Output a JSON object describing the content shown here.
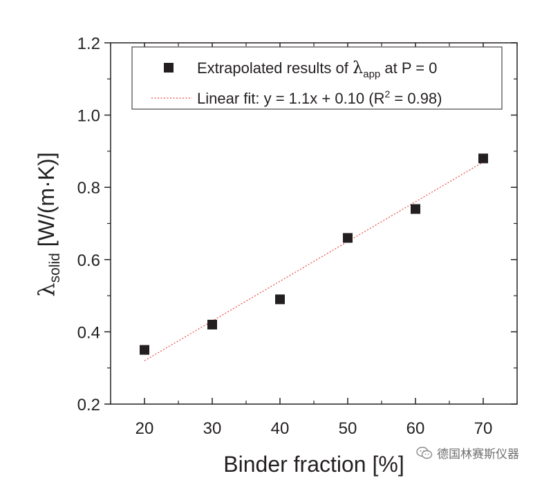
{
  "chart_data": {
    "type": "scatter",
    "title": "",
    "xlabel": "Binder fraction [%]",
    "ylabel": {
      "symbol": "λ",
      "subscript": "solid",
      "unit": " [W/(m·K)]"
    },
    "xlim": [
      15,
      75
    ],
    "ylim": [
      0.2,
      1.2
    ],
    "x_ticks": [
      20,
      30,
      40,
      50,
      60,
      70
    ],
    "x_tick_labels": [
      "20",
      "30",
      "40",
      "50",
      "60",
      "70"
    ],
    "y_ticks": [
      0.2,
      0.4,
      0.6,
      0.8,
      1.0,
      1.2
    ],
    "y_tick_labels": [
      "0.2",
      "0.4",
      "0.6",
      "0.8",
      "1.0",
      "1.2"
    ],
    "grid": false,
    "legend_position": "top-right",
    "series": [
      {
        "name": "Extrapolated results of λapp at P = 0",
        "legend_parts": {
          "before": "Extrapolated results of ",
          "symbol": "λ",
          "subscript": "app",
          "after": " at P = 0"
        },
        "kind": "scatter",
        "marker": "square",
        "color": "#231f20",
        "x": [
          20,
          30,
          40,
          50,
          60,
          70
        ],
        "y": [
          0.35,
          0.42,
          0.49,
          0.66,
          0.74,
          0.88
        ]
      },
      {
        "name": "Linear fit: y = 1.1x + 0.10 (R2 = 0.98)",
        "legend_parts": {
          "before": "Linear fit: y = 1.1x + 0.10 (R",
          "superscript": "2",
          "after": " = 0.98)"
        },
        "kind": "line",
        "style": "dotted",
        "color": "#e8473f",
        "x": [
          20,
          70
        ],
        "y": [
          0.32,
          0.87
        ]
      }
    ]
  },
  "watermark": {
    "icon": "wechat-icon",
    "text": "德国林赛斯仪器"
  }
}
